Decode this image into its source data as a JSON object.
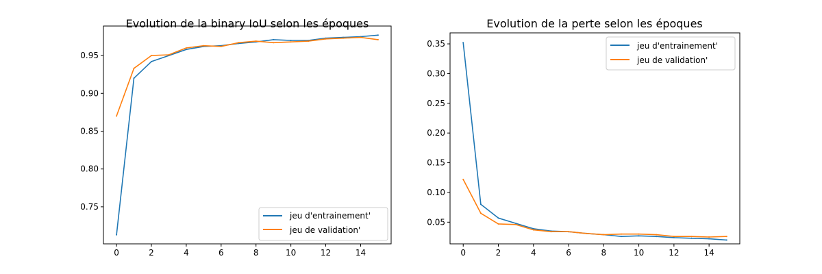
{
  "colors": {
    "train": "#1f77b4",
    "validation": "#ff7f0e"
  },
  "chart_data": [
    {
      "type": "line",
      "title": "Evolution de la binary IoU selon les époques",
      "xlabel": "",
      "ylabel": "",
      "x": [
        0,
        1,
        2,
        3,
        4,
        5,
        6,
        7,
        8,
        9,
        10,
        11,
        12,
        13,
        14,
        15
      ],
      "xlim": [
        -0.75,
        15.75
      ],
      "ylim": [
        0.701,
        0.989
      ],
      "xticks": [
        0,
        2,
        4,
        6,
        8,
        10,
        12,
        14
      ],
      "yticks": [
        0.75,
        0.8,
        0.85,
        0.9,
        0.95
      ],
      "ytick_labels": [
        "0.75",
        "0.80",
        "0.85",
        "0.90",
        "0.95"
      ],
      "legend_position": "lower-right",
      "series": [
        {
          "name": "jeu d'entrainement'",
          "values": [
            0.713,
            0.92,
            0.942,
            0.95,
            0.958,
            0.962,
            0.963,
            0.966,
            0.968,
            0.971,
            0.97,
            0.97,
            0.973,
            0.974,
            0.975,
            0.977
          ]
        },
        {
          "name": "jeu de validation'",
          "values": [
            0.87,
            0.933,
            0.95,
            0.951,
            0.96,
            0.963,
            0.962,
            0.967,
            0.969,
            0.967,
            0.968,
            0.969,
            0.972,
            0.973,
            0.974,
            0.971
          ]
        }
      ]
    },
    {
      "type": "line",
      "title": "Evolution de la perte selon les époques",
      "xlabel": "",
      "ylabel": "",
      "x": [
        0,
        1,
        2,
        3,
        4,
        5,
        6,
        7,
        8,
        9,
        10,
        11,
        12,
        13,
        14,
        15
      ],
      "xlim": [
        -0.75,
        15.75
      ],
      "ylim": [
        0.0135,
        0.3685
      ],
      "xticks": [
        0,
        2,
        4,
        6,
        8,
        10,
        12,
        14
      ],
      "yticks": [
        0.05,
        0.1,
        0.15,
        0.2,
        0.25,
        0.3,
        0.35
      ],
      "ytick_labels": [
        "0.05",
        "0.10",
        "0.15",
        "0.20",
        "0.25",
        "0.30",
        "0.35"
      ],
      "legend_position": "top-right",
      "series": [
        {
          "name": "jeu d'entrainement'",
          "values": [
            0.352,
            0.08,
            0.057,
            0.048,
            0.039,
            0.035,
            0.034,
            0.031,
            0.029,
            0.026,
            0.027,
            0.026,
            0.024,
            0.023,
            0.022,
            0.02
          ]
        },
        {
          "name": "jeu de validation'",
          "values": [
            0.122,
            0.065,
            0.047,
            0.046,
            0.037,
            0.034,
            0.034,
            0.031,
            0.029,
            0.03,
            0.03,
            0.029,
            0.026,
            0.026,
            0.025,
            0.026
          ]
        }
      ]
    }
  ]
}
